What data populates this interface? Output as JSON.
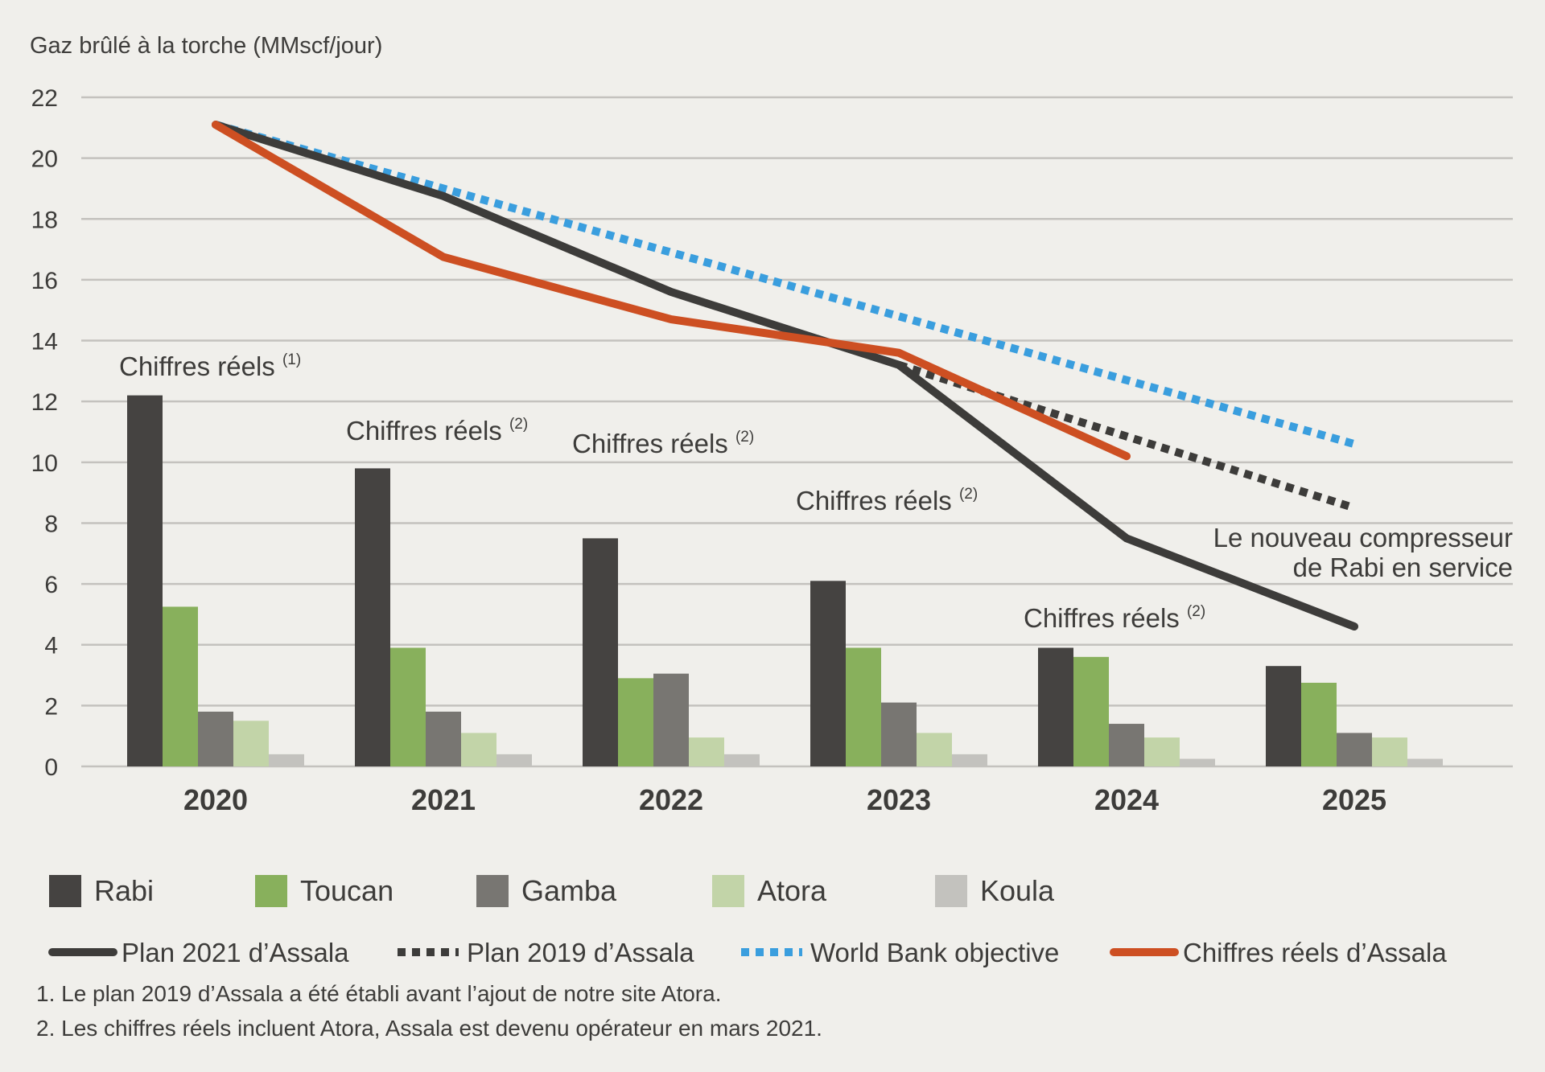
{
  "chart_data": {
    "type": "bar",
    "title": "",
    "ylabel": "Gaz brûlé à la torche (MMscf/jour)",
    "xlabel": "",
    "ylim": [
      0,
      22
    ],
    "yticks": [
      0,
      2,
      4,
      6,
      8,
      10,
      12,
      14,
      16,
      18,
      20,
      22
    ],
    "ytick_labels": [
      "0",
      "2",
      "4",
      "6",
      "8",
      "10",
      "12",
      "14",
      "16",
      "18",
      "20",
      "22"
    ],
    "grid": true,
    "categories": [
      "2020",
      "2021",
      "2022",
      "2023",
      "2024",
      "2025"
    ],
    "series": [
      {
        "name": "Rabi",
        "type": "bar",
        "color": "#454341",
        "values": [
          12.2,
          9.8,
          7.5,
          6.1,
          3.9,
          3.3
        ]
      },
      {
        "name": "Toucan",
        "type": "bar",
        "color": "#88b05c",
        "values": [
          5.25,
          3.9,
          2.9,
          3.9,
          3.6,
          2.75
        ]
      },
      {
        "name": "Gamba",
        "type": "bar",
        "color": "#787672",
        "values": [
          1.8,
          1.8,
          3.05,
          2.1,
          1.4,
          1.1
        ]
      },
      {
        "name": "Atora",
        "type": "bar",
        "color": "#c2d4a8",
        "values": [
          1.5,
          1.1,
          0.95,
          1.1,
          0.95,
          0.95
        ]
      },
      {
        "name": "Koula",
        "type": "bar",
        "color": "#c3c2be",
        "values": [
          0.4,
          0.4,
          0.4,
          0.4,
          0.25,
          0.25
        ]
      }
    ],
    "lines": [
      {
        "name": "World Bank objective",
        "style": "dotted",
        "color": "#3a9ede",
        "values": [
          21.1,
          19.0,
          16.9,
          14.8,
          12.7,
          10.6
        ]
      },
      {
        "name": "Plan 2019 d’Assala",
        "style": "dotted",
        "color": "#3d3c3a",
        "values": [
          null,
          null,
          null,
          13.2,
          10.85,
          8.5
        ]
      },
      {
        "name": "Plan 2021 d’Assala",
        "style": "solid",
        "color": "#3d3c3a",
        "values": [
          21.1,
          18.75,
          15.6,
          13.2,
          7.5,
          4.6
        ]
      },
      {
        "name": "Chiffres réels d’Assala",
        "style": "solid",
        "color": "#cd4f22",
        "values": [
          21.1,
          16.75,
          14.7,
          13.6,
          10.2,
          null
        ]
      }
    ],
    "annotations": [
      {
        "text": "Chiffres réels",
        "sup": "(1)",
        "category": "2020"
      },
      {
        "text": "Chiffres réels",
        "sup": "(2)",
        "category": "2021"
      },
      {
        "text": "Chiffres réels",
        "sup": "(2)",
        "category": "2022"
      },
      {
        "text": "Chiffres réels",
        "sup": "(2)",
        "category": "2023"
      },
      {
        "text": "Chiffres réels",
        "sup": "(2)",
        "category": "2024"
      },
      {
        "text_lines": [
          "Le nouveau compresseur",
          "de Rabi en service"
        ],
        "category": "2025"
      }
    ],
    "legend": {
      "placement": "bottom",
      "bar_items": [
        "Rabi",
        "Toucan",
        "Gamba",
        "Atora",
        "Koula"
      ],
      "line_items": [
        "Plan 2021 d’Assala",
        "Plan 2019 d’Assala",
        "World Bank objective",
        "Chiffres réels d’Assala"
      ]
    }
  },
  "footnotes": [
    "1. Le plan 2019 d’Assala a été établi avant l’ajout de notre site Atora.",
    "2. Les chiffres réels incluent Atora, Assala est devenu opérateur en mars 2021."
  ],
  "colors": {
    "background": "#f0efeb",
    "gridline": "#c4c2be",
    "text": "#3d3c3a"
  }
}
